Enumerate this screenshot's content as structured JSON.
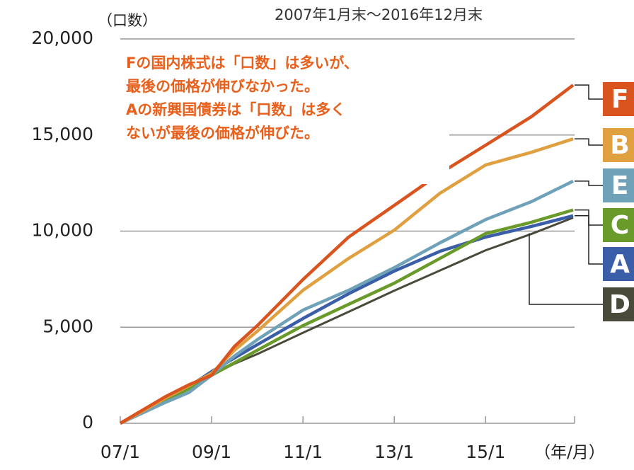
{
  "chart_data": {
    "type": "line",
    "title": "2007年1月末～2016年12月末",
    "y_label": "（口数）",
    "x_label": "（年/月）",
    "annotation": [
      "Fの国内株式は「口数」は多いが、",
      "最後の価格が伸びなかった。",
      "Aの新興国債券は「口数」は多く",
      "ないが最後の価格が伸びた。"
    ],
    "x": [
      0,
      6,
      12,
      18,
      24,
      30,
      36,
      48,
      60,
      72,
      84,
      96,
      108,
      119
    ],
    "series": [
      {
        "name": "F",
        "color": "#d9541e",
        "values": [
          0,
          700,
          1400,
          2000,
          2500,
          4000,
          5080,
          7480,
          9690,
          11340,
          13000,
          14470,
          15950,
          17600
        ]
      },
      {
        "name": "B",
        "color": "#e0a040",
        "values": [
          0,
          650,
          1330,
          1950,
          2600,
          3800,
          4790,
          6920,
          8580,
          10050,
          11970,
          13440,
          14100,
          14800
        ]
      },
      {
        "name": "E",
        "color": "#6fa1b8",
        "values": [
          0,
          550,
          1100,
          1600,
          2500,
          3500,
          4350,
          5890,
          6920,
          8100,
          9390,
          10600,
          11530,
          12600
        ]
      },
      {
        "name": "C",
        "color": "#6a9a2a",
        "values": [
          0,
          600,
          1180,
          1800,
          2500,
          3150,
          3800,
          5080,
          6190,
          7290,
          8580,
          9870,
          10460,
          11100
        ]
      },
      {
        "name": "A",
        "color": "#3a5ea8",
        "values": [
          0,
          620,
          1220,
          1900,
          2690,
          3400,
          4090,
          5450,
          6740,
          7920,
          8950,
          9690,
          10240,
          10800
        ]
      },
      {
        "name": "D",
        "color": "#4a4a3a",
        "values": [
          0,
          620,
          1250,
          1900,
          2500,
          3100,
          3600,
          4710,
          5800,
          6900,
          7950,
          9000,
          9850,
          10700
        ]
      }
    ],
    "xlim": [
      0,
      119
    ],
    "xticks": [
      {
        "value": 0,
        "label": "07/1"
      },
      {
        "value": 24,
        "label": "09/1"
      },
      {
        "value": 48,
        "label": "11/1"
      },
      {
        "value": 72,
        "label": "13/1"
      },
      {
        "value": 96,
        "label": "15/1"
      }
    ],
    "ylim": [
      0,
      20000
    ],
    "yticks": [
      0,
      {
        "value": 5000,
        "label": "5,000"
      },
      {
        "value": 10000,
        "label": "10,000"
      },
      {
        "value": 15000,
        "label": "15,000"
      },
      {
        "value": 20000,
        "label": "20,000"
      }
    ],
    "grid": true
  }
}
